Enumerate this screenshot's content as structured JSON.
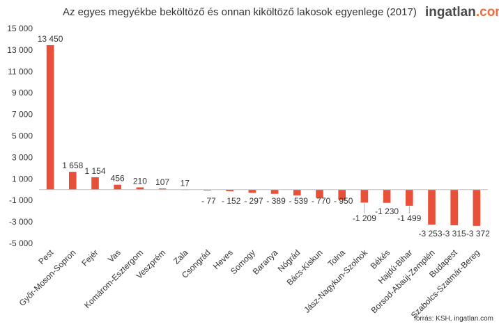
{
  "brand": {
    "main": "ingatlan",
    "accent": ".com"
  },
  "source": "forrás: KSH, ingatlan.com",
  "colors": {
    "bar": "#e8503a",
    "axis": "#bfbfbf",
    "text": "#333333",
    "brand_accent": "#f26b3a"
  },
  "chart_data": {
    "type": "bar",
    "title": "Az egyes megyékbe beköltöző és onnan kiköltöző lakosok egyenlege  (2017)",
    "xlabel": "",
    "ylabel": "",
    "ylim": [
      -5000,
      15000
    ],
    "yticks": [
      -5000,
      -3000,
      -1000,
      1000,
      3000,
      5000,
      7000,
      9000,
      11000,
      13000,
      15000
    ],
    "ytick_labels": [
      "-5 000",
      "-3 000",
      "-1 000",
      "1 000",
      "3 000",
      "5 000",
      "7 000",
      "9 000",
      "11 000",
      "13 000",
      "15 000"
    ],
    "grid": false,
    "categories": [
      "Pest",
      "Győr-Moson-Sopron",
      "Fejér",
      "Vas",
      "Komárom-Esztergom",
      "Veszprém",
      "Zala",
      "Csongrád",
      "Heves",
      "Somogy",
      "Baranya",
      "Nógrád",
      "Bács-Kiskun",
      "Tolna",
      "Jász-Nagykun-Szolnok",
      "Békés",
      "Hajdú-Bihar",
      "Borsod-Abaúj-Zemplén",
      "Budapest",
      "Szabolcs-Szatmár-Bereg"
    ],
    "values": [
      13450,
      1658,
      1154,
      456,
      210,
      107,
      17,
      -77,
      -152,
      -297,
      -389,
      -539,
      -770,
      -950,
      -1209,
      -1230,
      -1499,
      -3253,
      -3315,
      -3372
    ],
    "value_labels": [
      "13 450",
      "1 658",
      "1 154",
      "456",
      "210",
      "107",
      "17",
      "- 77",
      "- 152",
      "- 297",
      "- 389",
      "- 539",
      "- 770",
      "- 950",
      "-1 209",
      "-1 230",
      "-1 499",
      "-3 253",
      "-3 315",
      "-3 372"
    ]
  }
}
